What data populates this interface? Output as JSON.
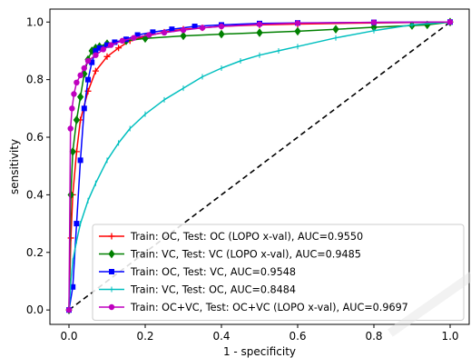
{
  "chart_data": {
    "type": "line",
    "xlabel": "1 - specificity",
    "ylabel": "sensitivity",
    "xlim": [
      -0.05,
      1.05
    ],
    "ylim": [
      -0.05,
      1.045
    ],
    "x_ticks": [
      "0.0",
      "0.2",
      "0.4",
      "0.6",
      "0.8",
      "1.0"
    ],
    "y_ticks": [
      "0.0",
      "0.2",
      "0.4",
      "0.6",
      "0.8",
      "1.0"
    ],
    "grid": false,
    "legend_position": "lower-right",
    "reference_line": {
      "style": "dashed",
      "color": "#000000",
      "from": [
        0,
        0
      ],
      "to": [
        1,
        1
      ]
    },
    "series": [
      {
        "name": "Train: OC, Test: OC (LOPO x-val), AUC=0.9550",
        "color": "#ff0000",
        "marker": "plus",
        "x": [
          0,
          0.005,
          0.01,
          0.02,
          0.03,
          0.05,
          0.07,
          0.1,
          0.13,
          0.16,
          0.2,
          0.25,
          0.3,
          0.35,
          0.4,
          0.5,
          0.6,
          0.8,
          1.0
        ],
        "y": [
          0,
          0.25,
          0.4,
          0.55,
          0.66,
          0.76,
          0.83,
          0.88,
          0.91,
          0.935,
          0.95,
          0.965,
          0.975,
          0.98,
          0.985,
          0.99,
          0.993,
          0.997,
          1.0
        ]
      },
      {
        "name": "Train: VC, Test: VC (LOPO x-val), AUC=0.9485",
        "color": "#008000",
        "marker": "diamond",
        "x": [
          0,
          0.005,
          0.01,
          0.02,
          0.03,
          0.04,
          0.05,
          0.06,
          0.07,
          0.08,
          0.1,
          0.15,
          0.2,
          0.3,
          0.4,
          0.5,
          0.6,
          0.7,
          0.8,
          0.9,
          0.94,
          1.0
        ],
        "y": [
          0,
          0.4,
          0.55,
          0.66,
          0.74,
          0.82,
          0.87,
          0.9,
          0.91,
          0.915,
          0.925,
          0.935,
          0.943,
          0.952,
          0.958,
          0.963,
          0.968,
          0.975,
          0.982,
          0.988,
          0.99,
          1.0
        ]
      },
      {
        "name": "Train: OC, Test: VC, AUC=0.9548",
        "color": "#0000ff",
        "marker": "square",
        "x": [
          0,
          0.01,
          0.02,
          0.03,
          0.04,
          0.05,
          0.06,
          0.07,
          0.08,
          0.1,
          0.12,
          0.15,
          0.18,
          0.22,
          0.27,
          0.33,
          0.4,
          0.5,
          0.6,
          0.8,
          1.0
        ],
        "y": [
          0,
          0.08,
          0.3,
          0.52,
          0.7,
          0.8,
          0.86,
          0.9,
          0.91,
          0.92,
          0.93,
          0.94,
          0.955,
          0.965,
          0.975,
          0.985,
          0.99,
          0.995,
          0.997,
          0.999,
          1.0
        ]
      },
      {
        "name": "Train: VC, Test: OC, AUC=0.8484",
        "color": "#00bfbf",
        "marker": "tick",
        "x": [
          0,
          0.005,
          0.01,
          0.02,
          0.03,
          0.05,
          0.07,
          0.1,
          0.13,
          0.16,
          0.2,
          0.25,
          0.3,
          0.35,
          0.4,
          0.45,
          0.5,
          0.55,
          0.6,
          0.7,
          0.8,
          0.9,
          1.0
        ],
        "y": [
          0,
          0.1,
          0.17,
          0.24,
          0.3,
          0.38,
          0.44,
          0.52,
          0.58,
          0.63,
          0.68,
          0.73,
          0.77,
          0.81,
          0.84,
          0.865,
          0.885,
          0.9,
          0.915,
          0.945,
          0.97,
          0.99,
          1.0
        ]
      },
      {
        "name": "Train: OC+VC, Test: OC+VC (LOPO x-val), AUC=0.9697",
        "color": "#bf00bf",
        "marker": "circle",
        "x": [
          0,
          0.004,
          0.008,
          0.013,
          0.02,
          0.03,
          0.04,
          0.05,
          0.07,
          0.09,
          0.11,
          0.14,
          0.17,
          0.21,
          0.25,
          0.3,
          0.35,
          0.4,
          0.5,
          0.6,
          0.8,
          1.0
        ],
        "y": [
          0,
          0.63,
          0.7,
          0.75,
          0.79,
          0.815,
          0.84,
          0.865,
          0.885,
          0.905,
          0.92,
          0.935,
          0.945,
          0.955,
          0.963,
          0.972,
          0.98,
          0.985,
          0.992,
          0.996,
          0.999,
          1.0
        ]
      }
    ]
  }
}
